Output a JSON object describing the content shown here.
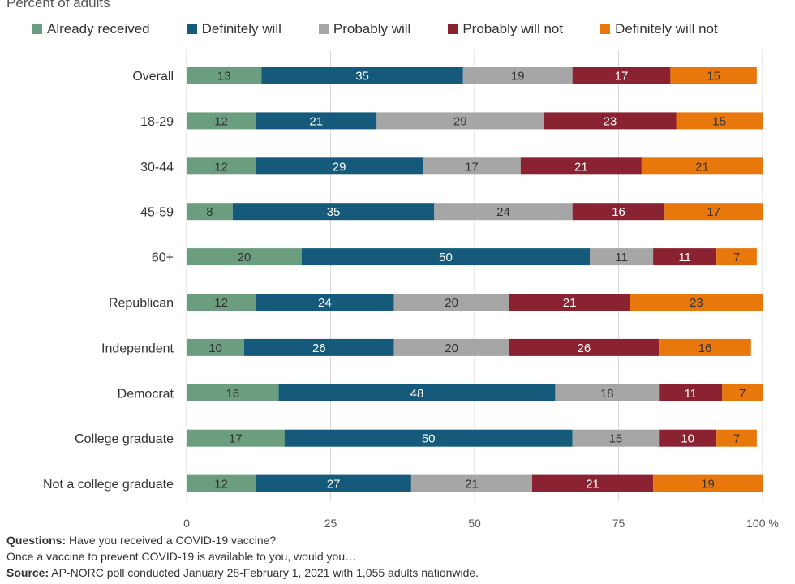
{
  "chart_data": {
    "type": "bar",
    "orientation": "horizontal",
    "stacked": true,
    "subtitle": "Percent of adults",
    "categories": [
      "Overall",
      "18-29",
      "30-44",
      "45-59",
      "60+",
      "Republican",
      "Independent",
      "Democrat",
      "College graduate",
      "Not a college graduate"
    ],
    "series": [
      {
        "name": "Already received",
        "color": "#6b9e7e",
        "label_color": "#333333",
        "values": [
          13,
          12,
          12,
          8,
          20,
          12,
          10,
          16,
          17,
          12
        ]
      },
      {
        "name": "Definitely will",
        "color": "#155a7a",
        "label_color": "#ffffff",
        "values": [
          35,
          21,
          29,
          35,
          50,
          24,
          26,
          48,
          50,
          27
        ]
      },
      {
        "name": "Probably will",
        "color": "#a6a6a6",
        "label_color": "#333333",
        "values": [
          19,
          29,
          17,
          24,
          11,
          20,
          20,
          18,
          15,
          21
        ]
      },
      {
        "name": "Probably will not",
        "color": "#8b2232",
        "label_color": "#ffffff",
        "values": [
          17,
          23,
          21,
          16,
          11,
          21,
          26,
          11,
          10,
          21
        ]
      },
      {
        "name": "Definitely will not",
        "color": "#e8770c",
        "label_color": "#333333",
        "values": [
          15,
          15,
          21,
          17,
          7,
          23,
          16,
          7,
          7,
          19
        ]
      }
    ],
    "xticks": [
      "0",
      "25",
      "50",
      "75",
      "100 %"
    ],
    "xlim": [
      0,
      100
    ],
    "grid": true,
    "legend_position": "top"
  },
  "footer": {
    "questions_label": "Questions:",
    "questions_text": "Have you received a COVID-19 vaccine?",
    "questions_line2": "Once a vaccine to prevent COVID-19 is available to you, would you…",
    "source_label": "Source:",
    "source_text": "AP-NORC poll conducted January 28-February 1, 2021 with 1,055 adults nationwide."
  }
}
